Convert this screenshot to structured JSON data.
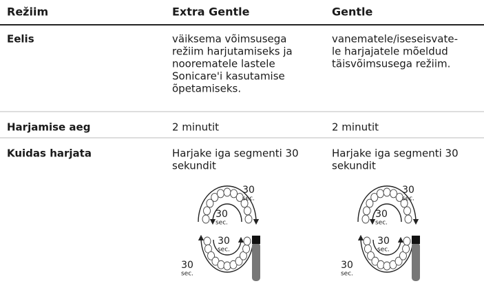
{
  "header": [
    "Režiim",
    "Extra Gentle",
    "Gentle"
  ],
  "rows": [
    {
      "label": "Eelis",
      "cells": [
        [
          "väiksema võimsusega",
          "režiim harjutamiseks ja",
          "noorematele lastele",
          "Sonicare'i kasutamise",
          "õpetamiseks."
        ],
        [
          "vanematele/iseseisvate-",
          "le harjajatele mõeldud",
          "täisvõimsusega režiim."
        ]
      ]
    },
    {
      "label": "Harjamise aeg",
      "cells": [
        [
          "2 minutit"
        ],
        [
          "2 minutit"
        ]
      ]
    },
    {
      "label": "Kuidas harjata",
      "cells": [
        [
          "Harjake iga segmenti 30",
          "sekundit"
        ],
        [
          "Harjake iga segmenti 30",
          "sekundit"
        ]
      ],
      "diagrams": [
        [
          {
            "number": "30",
            "unit": "sec."
          },
          {
            "number": "30",
            "unit": "sec."
          },
          {
            "number": "30",
            "unit": "sec."
          },
          {
            "number": "30",
            "unit": "sec."
          }
        ],
        [
          {
            "number": "30",
            "unit": "sec."
          },
          {
            "number": "30",
            "unit": "sec."
          },
          {
            "number": "30",
            "unit": "sec."
          },
          {
            "number": "30",
            "unit": "sec."
          }
        ]
      ]
    }
  ]
}
